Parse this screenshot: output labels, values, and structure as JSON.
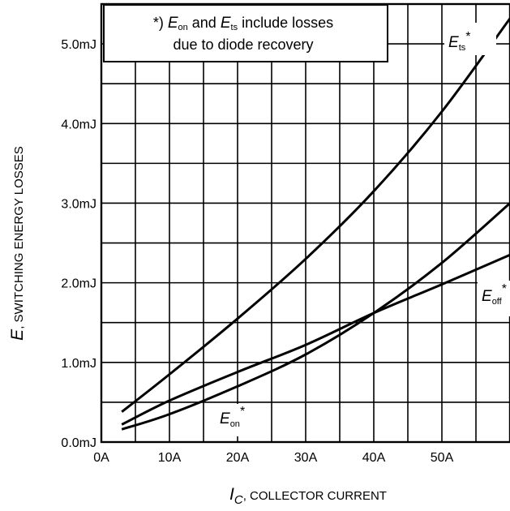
{
  "chart_data": {
    "type": "line",
    "title": "",
    "xlabel": {
      "symbol": "I",
      "subscript": "C",
      "text": ", COLLECTOR CURRENT"
    },
    "ylabel": {
      "symbol": "E",
      "text": ", SWITCHING ENERGY LOSSES"
    },
    "x_ticks": [
      "0A",
      "10A",
      "20A",
      "30A",
      "40A",
      "50A"
    ],
    "y_ticks": [
      "0.0mJ",
      "1.0mJ",
      "2.0mJ",
      "3.0mJ",
      "4.0mJ",
      "5.0mJ"
    ],
    "xlim": [
      0,
      60
    ],
    "ylim": [
      0,
      5.5
    ],
    "x_unit": "A",
    "y_unit": "mJ",
    "grid": true,
    "note": {
      "prefix": "*) ",
      "sym1": "E",
      "sub1": "on",
      "mid": " and ",
      "sym2": "E",
      "sub2": "ts",
      "tail1": " include losses",
      "line2": "due to diode recovery"
    },
    "series": [
      {
        "symbol": "E",
        "subscript": "ts",
        "marker": "*",
        "x": [
          3,
          10,
          20,
          30,
          40,
          50,
          60
        ],
        "y": [
          0.38,
          0.85,
          1.55,
          2.3,
          3.15,
          4.15,
          5.32
        ]
      },
      {
        "symbol": "E",
        "subscript": "off",
        "marker": "*",
        "x": [
          3,
          10,
          20,
          30,
          40,
          50,
          60
        ],
        "y": [
          0.22,
          0.52,
          0.88,
          1.22,
          1.62,
          1.98,
          2.35
        ]
      },
      {
        "symbol": "E",
        "subscript": "on",
        "marker": "*",
        "x": [
          3,
          10,
          20,
          30,
          40,
          50,
          60
        ],
        "y": [
          0.16,
          0.35,
          0.7,
          1.1,
          1.62,
          2.25,
          3.0
        ]
      }
    ]
  }
}
